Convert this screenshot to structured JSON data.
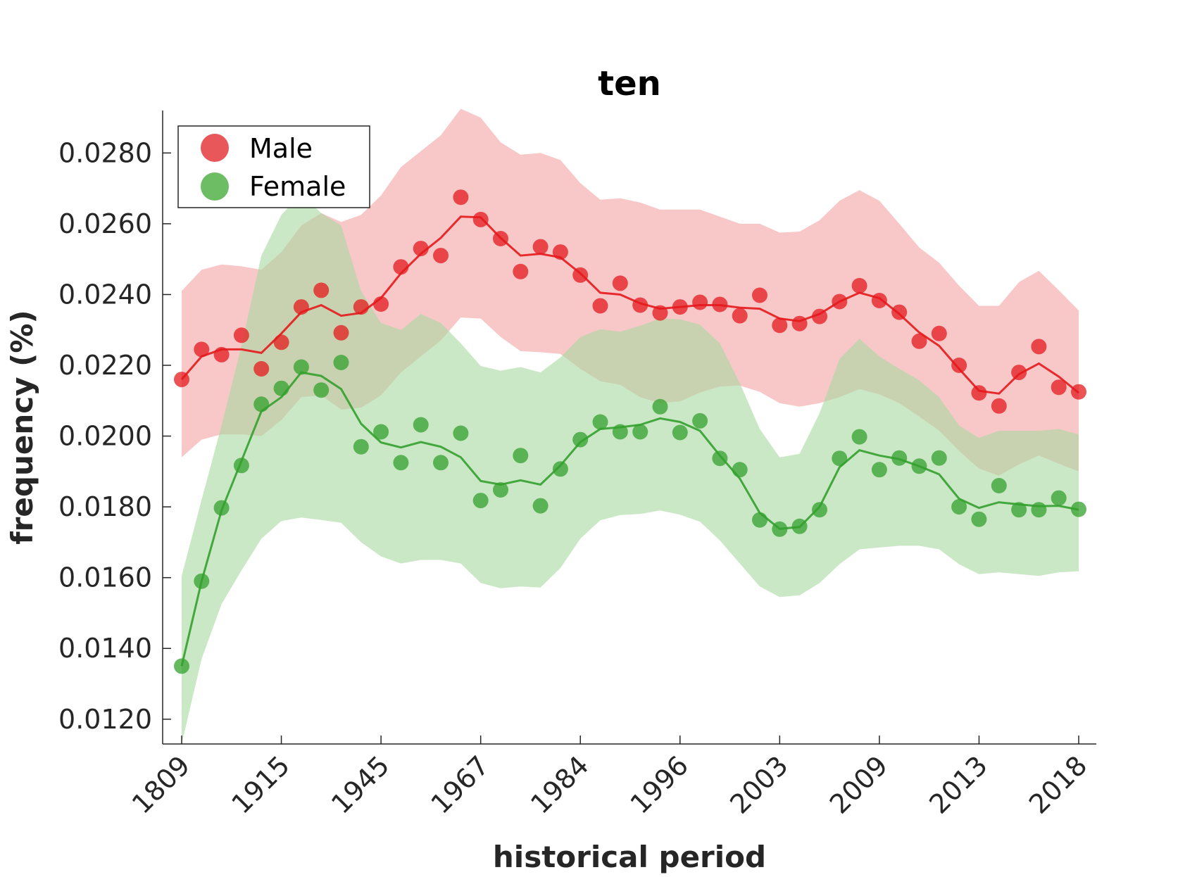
{
  "chart_data": {
    "type": "line",
    "title": "ten",
    "xlabel": "historical period",
    "ylabel": "frequency (%)",
    "x_tick_labels": [
      "1809",
      "1915",
      "1945",
      "1967",
      "1984",
      "1996",
      "2003",
      "2009",
      "2013",
      "2018"
    ],
    "y_tick_labels": [
      "0.0120",
      "0.0140",
      "0.0160",
      "0.0180",
      "0.0200",
      "0.0220",
      "0.0240",
      "0.0260",
      "0.0280"
    ],
    "ylim": [
      0.0113,
      0.0292
    ],
    "grid": false,
    "legend_position": "top-left",
    "series": [
      {
        "name": "Male",
        "color": "#e41a1c",
        "band_color": "#f4a3a5",
        "points": [
          0.0216,
          0.02245,
          0.0223,
          0.02285,
          0.0219,
          0.02265,
          0.02365,
          0.02412,
          0.02292,
          0.02365,
          0.02373,
          0.02478,
          0.0253,
          0.0251,
          0.02675,
          0.02612,
          0.02558,
          0.02465,
          0.02535,
          0.0252,
          0.02455,
          0.02368,
          0.02432,
          0.0237,
          0.02348,
          0.02365,
          0.02378,
          0.02372,
          0.0234,
          0.02398,
          0.02313,
          0.02318,
          0.02338,
          0.0238,
          0.02425,
          0.02383,
          0.0235,
          0.02268,
          0.0229,
          0.022,
          0.02122,
          0.02085,
          0.0218,
          0.02253,
          0.02138,
          0.02125
        ],
        "line": [
          0.0216,
          0.02225,
          0.02245,
          0.02245,
          0.02235,
          0.0229,
          0.0235,
          0.0237,
          0.0234,
          0.02348,
          0.0239,
          0.0246,
          0.02515,
          0.0256,
          0.0262,
          0.02618,
          0.0256,
          0.0251,
          0.02515,
          0.02505,
          0.0246,
          0.02405,
          0.024,
          0.02375,
          0.0236,
          0.02365,
          0.0237,
          0.0237,
          0.02363,
          0.0236,
          0.02332,
          0.02325,
          0.02345,
          0.0238,
          0.02405,
          0.0239,
          0.02345,
          0.02293,
          0.02255,
          0.0219,
          0.02128,
          0.0212,
          0.02175,
          0.02205,
          0.02168,
          0.02122
        ],
        "upper": [
          0.0241,
          0.0247,
          0.02485,
          0.0248,
          0.0247,
          0.0252,
          0.02595,
          0.0263,
          0.02605,
          0.02625,
          0.0268,
          0.0276,
          0.02805,
          0.0285,
          0.02925,
          0.029,
          0.0283,
          0.02795,
          0.028,
          0.0278,
          0.02715,
          0.02668,
          0.02672,
          0.0266,
          0.0264,
          0.0264,
          0.0264,
          0.0262,
          0.026,
          0.026,
          0.02575,
          0.02578,
          0.0261,
          0.02665,
          0.02695,
          0.02665,
          0.026,
          0.02533,
          0.0249,
          0.02425,
          0.02368,
          0.02368,
          0.02435,
          0.02467,
          0.02412,
          0.02355
        ],
        "lower": [
          0.0194,
          0.0199,
          0.02005,
          0.02005,
          0.02,
          0.02045,
          0.0211,
          0.02115,
          0.02075,
          0.0208,
          0.02115,
          0.0218,
          0.02225,
          0.0227,
          0.02335,
          0.02332,
          0.0228,
          0.0224,
          0.02237,
          0.02232,
          0.0219,
          0.02155,
          0.02145,
          0.0211,
          0.02093,
          0.02098,
          0.02123,
          0.0214,
          0.02143,
          0.02125,
          0.02093,
          0.02083,
          0.02093,
          0.0211,
          0.02133,
          0.02118,
          0.02093,
          0.02055,
          0.02015,
          0.01958,
          0.01908,
          0.01888,
          0.0192,
          0.01945,
          0.01922,
          0.019
        ]
      },
      {
        "name": "Female",
        "color": "#33a02c",
        "band_color": "#a9d9a0",
        "points": [
          0.0135,
          0.0159,
          0.01797,
          0.01917,
          0.0209,
          0.02135,
          0.02195,
          0.0213,
          0.02208,
          0.0197,
          0.02012,
          0.01925,
          0.02032,
          0.01925,
          0.02008,
          0.01818,
          0.01848,
          0.01945,
          0.01803,
          0.01907,
          0.0199,
          0.0204,
          0.02012,
          0.02012,
          0.02083,
          0.0201,
          0.02043,
          0.01937,
          0.01905,
          0.01763,
          0.01737,
          0.01745,
          0.01792,
          0.01937,
          0.01998,
          0.01905,
          0.01938,
          0.01915,
          0.01938,
          0.018,
          0.01765,
          0.0186,
          0.01792,
          0.01792,
          0.01825,
          0.01793
        ],
        "line": [
          0.0135,
          0.0159,
          0.0179,
          0.0193,
          0.0207,
          0.0211,
          0.0218,
          0.0217,
          0.02133,
          0.02035,
          0.01982,
          0.01968,
          0.01983,
          0.0197,
          0.0194,
          0.01873,
          0.01863,
          0.01875,
          0.01863,
          0.01917,
          0.01983,
          0.0202,
          0.02025,
          0.02032,
          0.0205,
          0.0204,
          0.02015,
          0.01945,
          0.0188,
          0.01783,
          0.01738,
          0.01743,
          0.018,
          0.01912,
          0.0196,
          0.01945,
          0.01935,
          0.01915,
          0.01892,
          0.01823,
          0.01797,
          0.01813,
          0.01807,
          0.01802,
          0.01803,
          0.01792
        ],
        "upper": [
          0.01605,
          0.0182,
          0.0203,
          0.02255,
          0.0251,
          0.02625,
          0.02685,
          0.0263,
          0.02595,
          0.0241,
          0.0232,
          0.023,
          0.02345,
          0.0232,
          0.02262,
          0.02198,
          0.02185,
          0.02195,
          0.0218,
          0.02222,
          0.0228,
          0.02302,
          0.02295,
          0.02312,
          0.02332,
          0.0233,
          0.02315,
          0.02262,
          0.0215,
          0.0202,
          0.0194,
          0.0195,
          0.02065,
          0.02218,
          0.02275,
          0.02225,
          0.0219,
          0.02158,
          0.0211,
          0.0203,
          0.01995,
          0.02015,
          0.02015,
          0.02015,
          0.0202,
          0.02005
        ],
        "lower": [
          0.0113,
          0.0137,
          0.01525,
          0.0162,
          0.0171,
          0.0176,
          0.0177,
          0.01763,
          0.01755,
          0.017,
          0.0166,
          0.0164,
          0.0165,
          0.0165,
          0.0164,
          0.01585,
          0.0157,
          0.01575,
          0.01572,
          0.01627,
          0.0171,
          0.01762,
          0.01777,
          0.0178,
          0.0179,
          0.01778,
          0.01758,
          0.01705,
          0.0164,
          0.01575,
          0.01545,
          0.0155,
          0.01585,
          0.01638,
          0.0168,
          0.01685,
          0.0169,
          0.0169,
          0.0168,
          0.01638,
          0.0161,
          0.01615,
          0.0161,
          0.01605,
          0.01615,
          0.01618
        ]
      }
    ]
  }
}
